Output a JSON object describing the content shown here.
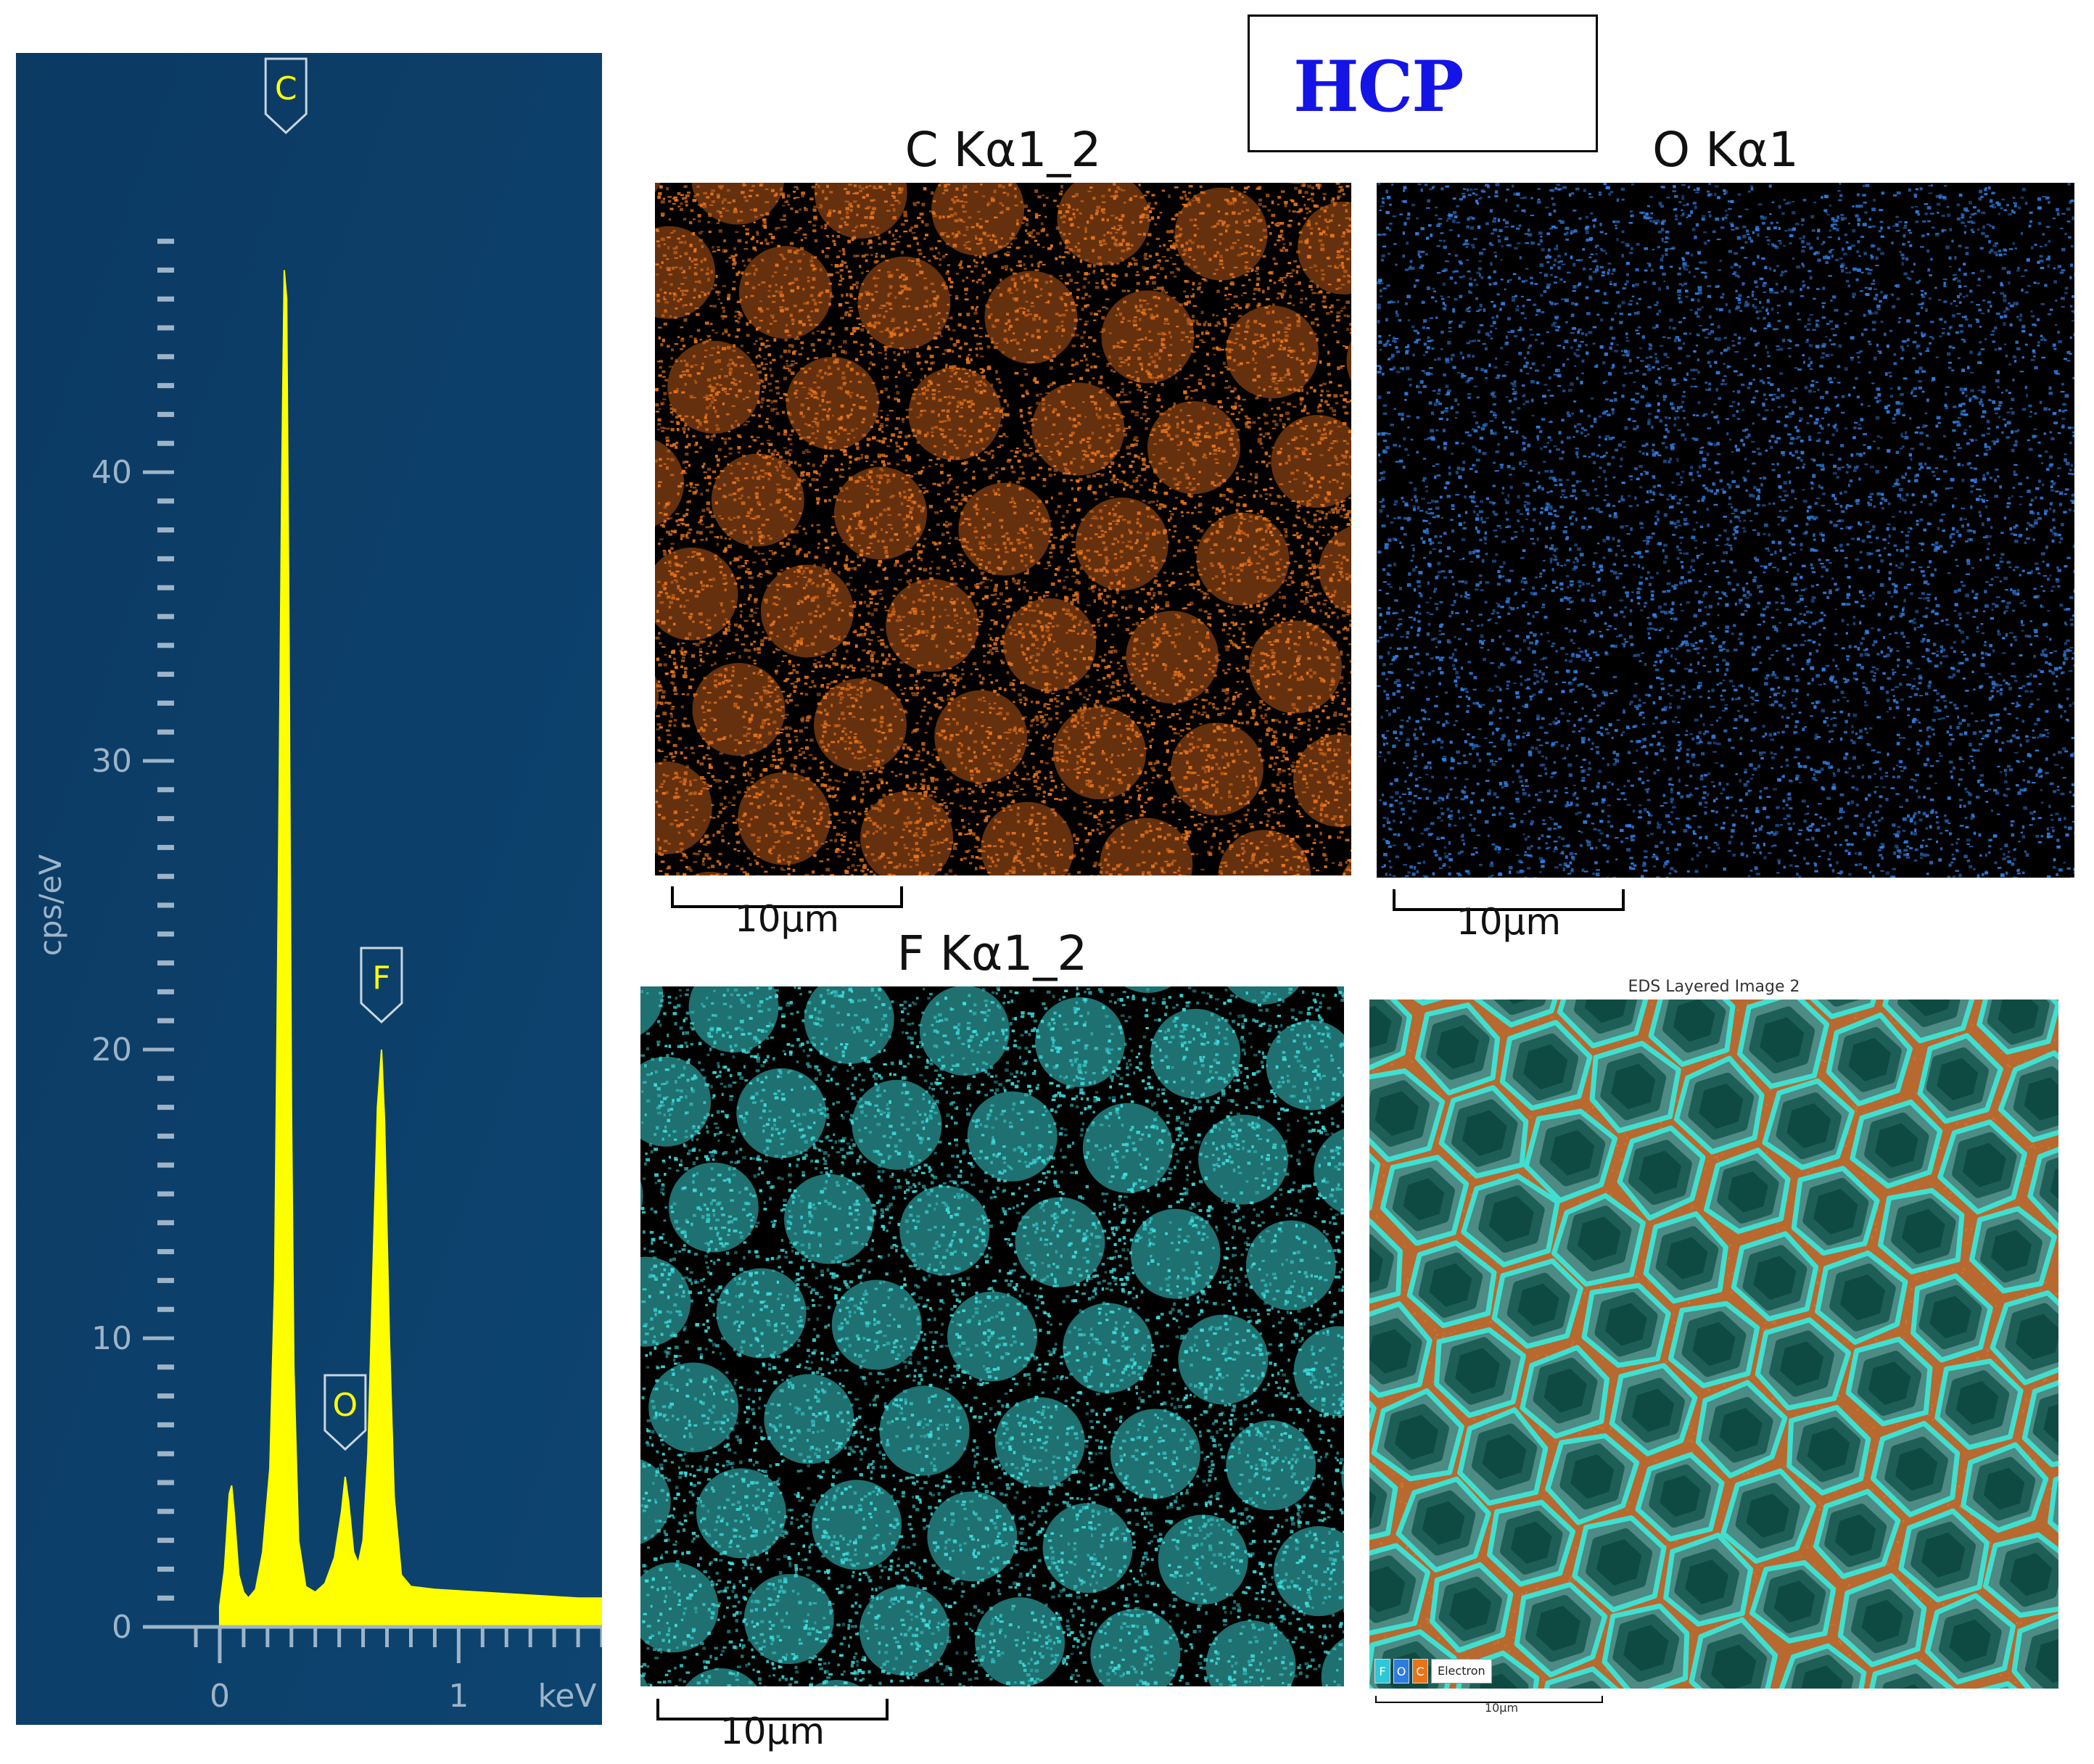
{
  "figure": {
    "label": "HCP",
    "colors": {
      "label": "#1414e6",
      "panel_bg": "#0a3d66",
      "spectrum": "#ffff00"
    }
  },
  "chart_data": {
    "type": "area",
    "title": "",
    "xlabel": "keV",
    "ylabel": "cps/eV",
    "xlim": [
      -0.1,
      1.6
    ],
    "ylim": [
      0,
      50
    ],
    "x_ticks": [
      0,
      1
    ],
    "y_ticks": [
      0,
      10,
      20,
      30,
      40
    ],
    "grid": false,
    "series": [
      {
        "values": [
          [
            0.0,
            0.7
          ],
          [
            0.02,
            2.0
          ],
          [
            0.04,
            4.6
          ],
          [
            0.05,
            4.9
          ],
          [
            0.06,
            4.0
          ],
          [
            0.08,
            1.8
          ],
          [
            0.1,
            1.2
          ],
          [
            0.12,
            1.0
          ],
          [
            0.15,
            1.3
          ],
          [
            0.18,
            2.6
          ],
          [
            0.21,
            5.5
          ],
          [
            0.23,
            12.0
          ],
          [
            0.245,
            25.0
          ],
          [
            0.26,
            40.0
          ],
          [
            0.27,
            47.0
          ],
          [
            0.28,
            46.0
          ],
          [
            0.29,
            34.0
          ],
          [
            0.3,
            18.0
          ],
          [
            0.31,
            9.0
          ],
          [
            0.33,
            3.0
          ],
          [
            0.36,
            1.4
          ],
          [
            0.4,
            1.2
          ],
          [
            0.44,
            1.5
          ],
          [
            0.48,
            2.4
          ],
          [
            0.51,
            4.0
          ],
          [
            0.525,
            5.2
          ],
          [
            0.54,
            4.3
          ],
          [
            0.56,
            2.6
          ],
          [
            0.58,
            2.2
          ],
          [
            0.6,
            3.0
          ],
          [
            0.62,
            6.0
          ],
          [
            0.64,
            12.0
          ],
          [
            0.66,
            18.0
          ],
          [
            0.677,
            20.0
          ],
          [
            0.69,
            17.5
          ],
          [
            0.71,
            10.0
          ],
          [
            0.73,
            4.5
          ],
          [
            0.76,
            1.8
          ],
          [
            0.8,
            1.4
          ],
          [
            0.9,
            1.3
          ],
          [
            1.0,
            1.25
          ],
          [
            1.1,
            1.2
          ],
          [
            1.2,
            1.15
          ],
          [
            1.3,
            1.1
          ],
          [
            1.4,
            1.05
          ],
          [
            1.5,
            1.0
          ],
          [
            1.6,
            1.0
          ]
        ]
      }
    ],
    "peak_labels": [
      {
        "element": "C",
        "energy": 0.277,
        "value": 47
      },
      {
        "element": "O",
        "energy": 0.525,
        "value": 5.2
      },
      {
        "element": "F",
        "energy": 0.677,
        "value": 20
      }
    ]
  },
  "maps": {
    "carbon": {
      "title": "C Kα1_2",
      "color": "#e8741a",
      "scale": "10µm"
    },
    "oxygen": {
      "title": "O Kα1",
      "color": "#2f7ce0",
      "scale": "10µm"
    },
    "fluorine": {
      "title": "F Kα1_2",
      "color": "#3fe0e0",
      "scale": "10µm"
    },
    "layered": {
      "title": "EDS Layered Image 2",
      "scale": "10µm",
      "legend": [
        {
          "element": "F",
          "color": "#2ec8d8"
        },
        {
          "element": "O",
          "color": "#2f7ce0"
        },
        {
          "element": "C",
          "color": "#e8741a"
        }
      ],
      "legend_electron": "Electron"
    }
  }
}
